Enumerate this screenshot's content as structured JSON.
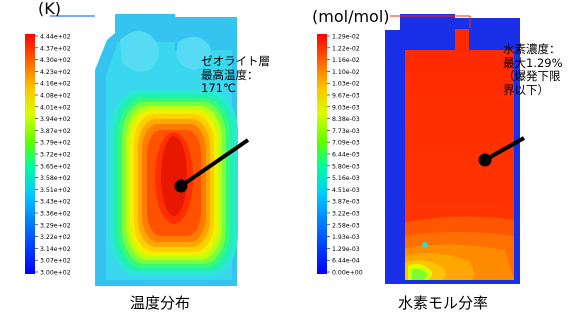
{
  "panels": [
    {
      "id": "temperature",
      "caption": "温度分布",
      "unit_label": "(K)",
      "legend_ticks": [
        "4.44e+02",
        "4.37e+02",
        "4.30e+02",
        "4.23e+02",
        "4.16e+02",
        "4.08e+02",
        "4.01e+02",
        "3.94e+02",
        "3.87e+02",
        "3.79e+02",
        "3.72e+02",
        "3.65e+02",
        "3.58e+02",
        "3.51e+02",
        "3.43e+02",
        "3.36e+02",
        "3.29e+02",
        "3.22e+02",
        "3.14e+02",
        "3.07e+02",
        "3.00e+02"
      ],
      "annotation_lines": [
        "ゼオライト層",
        "最高温度：",
        "171℃"
      ],
      "colors": {
        "background_field": "#35c4f0"
      }
    },
    {
      "id": "hydrogen",
      "caption": "水素モル分率",
      "unit_label": "(mol/mol)",
      "legend_ticks": [
        "1.29e-02",
        "1.22e-02",
        "1.16e-02",
        "1.10e-02",
        "1.03e-02",
        "9.67e-03",
        "9.03e-03",
        "8.38e-03",
        "7.73e-03",
        "7.09e-03",
        "6.44e-03",
        "5.80e-03",
        "5.16e-03",
        "4.51e-03",
        "3.87e-03",
        "3.22e-03",
        "2.58e-03",
        "1.93e-03",
        "1.29e-03",
        "6.44e-04",
        "0.00e+00"
      ],
      "annotation_lines": [
        "水素濃度：",
        "最大1.29%",
        "（爆発下限",
        "界以下）"
      ],
      "colors": {
        "background_field": "#1a2fe8"
      }
    }
  ]
}
